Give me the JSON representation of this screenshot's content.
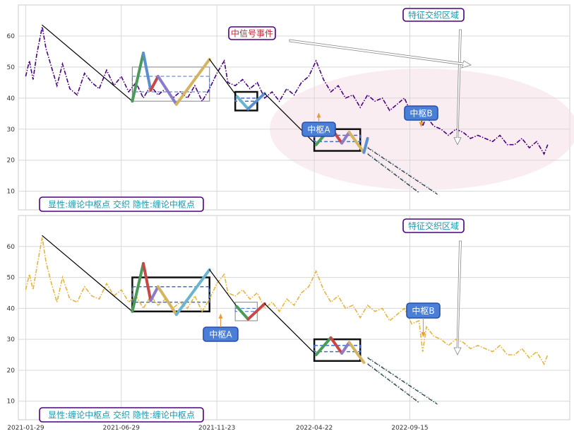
{
  "chart_data": [
    {
      "type": "line",
      "panel": "top",
      "ylim": [
        4,
        70
      ],
      "y_ticks": [
        10,
        20,
        30,
        40,
        50,
        60
      ],
      "x_ticks": [
        "2021-01-29",
        "2021-06-29",
        "2021-11-23",
        "2022-04-22",
        "2022-09-15"
      ],
      "grid": true,
      "price_color": "#4b0082",
      "price_series": [
        [
          0,
          47
        ],
        [
          2,
          52
        ],
        [
          4,
          46
        ],
        [
          6,
          54
        ],
        [
          9,
          63
        ],
        [
          11,
          56
        ],
        [
          14,
          50
        ],
        [
          17,
          44
        ],
        [
          20,
          51
        ],
        [
          24,
          43
        ],
        [
          28,
          41
        ],
        [
          32,
          48
        ],
        [
          36,
          45
        ],
        [
          40,
          43
        ],
        [
          44,
          49
        ],
        [
          48,
          44
        ],
        [
          52,
          47
        ],
        [
          56,
          42
        ],
        [
          60,
          45
        ],
        [
          64,
          40
        ],
        [
          68,
          44
        ],
        [
          72,
          41
        ],
        [
          76,
          43
        ],
        [
          80,
          40
        ],
        [
          84,
          42
        ],
        [
          88,
          40
        ],
        [
          92,
          44
        ],
        [
          96,
          39
        ],
        [
          100,
          43
        ],
        [
          104,
          48
        ],
        [
          108,
          52
        ],
        [
          110,
          45
        ],
        [
          114,
          44
        ],
        [
          118,
          46
        ],
        [
          122,
          43
        ],
        [
          126,
          45
        ],
        [
          130,
          40
        ],
        [
          134,
          42
        ],
        [
          138,
          39
        ],
        [
          142,
          43
        ],
        [
          146,
          41
        ],
        [
          150,
          45
        ],
        [
          154,
          47
        ],
        [
          158,
          52
        ],
        [
          162,
          46
        ],
        [
          166,
          42
        ],
        [
          170,
          44
        ],
        [
          174,
          40
        ],
        [
          178,
          41
        ],
        [
          182,
          37
        ],
        [
          186,
          41
        ],
        [
          190,
          39
        ],
        [
          194,
          40
        ],
        [
          198,
          36
        ],
        [
          202,
          38
        ],
        [
          206,
          40
        ],
        [
          210,
          35
        ],
        [
          214,
          36
        ],
        [
          216,
          31
        ],
        [
          218,
          34
        ],
        [
          222,
          31
        ],
        [
          226,
          30
        ],
        [
          230,
          28
        ],
        [
          234,
          30
        ],
        [
          238,
          29
        ],
        [
          242,
          27
        ],
        [
          246,
          28
        ],
        [
          250,
          27
        ],
        [
          254,
          26
        ],
        [
          258,
          28
        ],
        [
          262,
          25
        ],
        [
          266,
          25
        ],
        [
          270,
          27
        ],
        [
          274,
          24
        ],
        [
          278,
          26
        ],
        [
          282,
          22
        ],
        [
          284,
          25
        ]
      ],
      "strokes": [
        {
          "from": [
            9,
            63.5
          ],
          "to": [
            58,
            39
          ],
          "color": "#000000"
        },
        {
          "from": [
            58,
            39
          ],
          "to": [
            64,
            54.5
          ],
          "color": "#4a9a5a"
        },
        {
          "from": [
            64,
            54.5
          ],
          "to": [
            68,
            42.5
          ],
          "color": "#5a8fd0"
        },
        {
          "from": [
            68,
            42.5
          ],
          "to": [
            72,
            47
          ],
          "color": "#c84848"
        },
        {
          "from": [
            72,
            47
          ],
          "to": [
            82,
            38
          ],
          "color": "#8a7cc8"
        },
        {
          "from": [
            82,
            38
          ],
          "to": [
            100,
            52.5
          ],
          "color": "#d4b45e"
        },
        {
          "from": [
            100,
            52.5
          ],
          "to": [
            115,
            40.5
          ],
          "color": "#000000"
        },
        {
          "from": [
            115,
            40.5
          ],
          "to": [
            121,
            36.5
          ],
          "color": "#6ab4d0"
        },
        {
          "from": [
            121,
            36.5
          ],
          "to": [
            130,
            41.5
          ],
          "color": "#5a8fd0"
        },
        {
          "from": [
            130,
            41.5
          ],
          "to": [
            158,
            25
          ],
          "color": "#000000"
        },
        {
          "from": [
            158,
            25
          ],
          "to": [
            166,
            30.5
          ],
          "color": "#4a9a5a"
        },
        {
          "from": [
            166,
            30.5
          ],
          "to": [
            172,
            25.5
          ],
          "color": "#c84848"
        },
        {
          "from": [
            172,
            25.5
          ],
          "to": [
            176,
            29
          ],
          "color": "#8a7cc8"
        },
        {
          "from": [
            176,
            29
          ],
          "to": [
            184,
            22.5
          ],
          "color": "#d4b45e"
        },
        {
          "from": [
            184,
            22.5
          ],
          "to": [
            186,
            27
          ],
          "color": "#5a8fd0"
        }
      ],
      "zhongshu": [
        {
          "x": [
            58,
            100
          ],
          "y": [
            39,
            50
          ],
          "inner": [
            42,
            47
          ],
          "style": "gray"
        },
        {
          "x": [
            114,
            126
          ],
          "y": [
            36,
            42
          ],
          "inner": [
            39,
            40
          ],
          "style": "black"
        },
        {
          "x": [
            157,
            182
          ],
          "y": [
            23,
            30
          ],
          "inner": [
            26,
            28
          ],
          "style": "black"
        }
      ],
      "projections": [
        {
          "from": [
            186,
            22
          ],
          "to": [
            214,
            9.5
          ]
        },
        {
          "from": [
            186,
            24
          ],
          "to": [
            224,
            9
          ]
        }
      ],
      "labels": {
        "box1": "中枢A",
        "box2": "中枢B",
        "signal": "中信号事件",
        "region": "特征交织区域",
        "legend": "显性:缠论中枢点 交织 隐性:缠论中枢点"
      },
      "label_colors": {
        "box_bg": "#4a7fd8",
        "signal_text": "#c0283a",
        "region_text": "#1a9ab0",
        "legend_text": "#1a9ab0",
        "label_border": "#4b0082"
      }
    },
    {
      "type": "line",
      "panel": "bottom",
      "ylim": [
        4,
        70
      ],
      "y_ticks": [
        10,
        20,
        30,
        40,
        50,
        60
      ],
      "x_ticks": [
        "2021-01-29",
        "2021-06-29",
        "2021-11-23",
        "2022-04-22",
        "2022-09-15"
      ],
      "grid": true,
      "price_color": "#e8b43c",
      "price_series": [
        [
          0,
          46
        ],
        [
          2,
          51
        ],
        [
          4,
          46
        ],
        [
          6,
          53
        ],
        [
          9,
          63
        ],
        [
          11,
          55
        ],
        [
          14,
          48
        ],
        [
          17,
          42
        ],
        [
          20,
          50
        ],
        [
          24,
          43
        ],
        [
          28,
          42
        ],
        [
          32,
          47
        ],
        [
          36,
          44
        ],
        [
          40,
          43
        ],
        [
          44,
          48
        ],
        [
          48,
          44
        ],
        [
          52,
          46
        ],
        [
          56,
          42
        ],
        [
          60,
          44
        ],
        [
          64,
          40
        ],
        [
          68,
          44
        ],
        [
          72,
          41
        ],
        [
          76,
          43
        ],
        [
          80,
          40
        ],
        [
          84,
          42
        ],
        [
          88,
          40
        ],
        [
          92,
          44
        ],
        [
          96,
          39
        ],
        [
          100,
          43
        ],
        [
          104,
          48
        ],
        [
          108,
          51
        ],
        [
          110,
          45
        ],
        [
          114,
          44
        ],
        [
          118,
          46
        ],
        [
          122,
          43
        ],
        [
          126,
          45
        ],
        [
          130,
          40
        ],
        [
          134,
          42
        ],
        [
          138,
          39
        ],
        [
          142,
          43
        ],
        [
          146,
          41
        ],
        [
          150,
          45
        ],
        [
          154,
          47
        ],
        [
          158,
          52
        ],
        [
          162,
          46
        ],
        [
          166,
          42
        ],
        [
          170,
          44
        ],
        [
          174,
          40
        ],
        [
          178,
          41
        ],
        [
          182,
          37
        ],
        [
          186,
          41
        ],
        [
          190,
          39
        ],
        [
          194,
          40
        ],
        [
          198,
          36
        ],
        [
          202,
          38
        ],
        [
          206,
          40
        ],
        [
          210,
          35
        ],
        [
          214,
          36
        ],
        [
          216,
          26
        ],
        [
          218,
          34
        ],
        [
          222,
          31
        ],
        [
          226,
          30
        ],
        [
          230,
          28
        ],
        [
          234,
          30
        ],
        [
          238,
          29
        ],
        [
          242,
          27
        ],
        [
          246,
          28
        ],
        [
          250,
          27
        ],
        [
          254,
          26
        ],
        [
          258,
          28
        ],
        [
          262,
          25
        ],
        [
          266,
          25
        ],
        [
          270,
          27
        ],
        [
          274,
          24
        ],
        [
          278,
          26
        ],
        [
          282,
          22
        ],
        [
          284,
          25
        ]
      ],
      "strokes": [
        {
          "from": [
            9,
            63.5
          ],
          "to": [
            58,
            39
          ],
          "color": "#000000"
        },
        {
          "from": [
            58,
            39
          ],
          "to": [
            64,
            54.5
          ],
          "color": "#4a9a5a"
        },
        {
          "from": [
            64,
            54.5
          ],
          "to": [
            68,
            42.5
          ],
          "color": "#c84848"
        },
        {
          "from": [
            68,
            42.5
          ],
          "to": [
            72,
            47
          ],
          "color": "#8a7cc8"
        },
        {
          "from": [
            72,
            47
          ],
          "to": [
            82,
            38
          ],
          "color": "#d4b45e"
        },
        {
          "from": [
            82,
            38
          ],
          "to": [
            100,
            52.5
          ],
          "color": "#6ab4d0"
        },
        {
          "from": [
            100,
            52.5
          ],
          "to": [
            115,
            40.5
          ],
          "color": "#000000"
        },
        {
          "from": [
            115,
            40.5
          ],
          "to": [
            121,
            36.5
          ],
          "color": "#4a9a5a"
        },
        {
          "from": [
            121,
            36.5
          ],
          "to": [
            130,
            41.5
          ],
          "color": "#c84848"
        },
        {
          "from": [
            130,
            41.5
          ],
          "to": [
            158,
            25
          ],
          "color": "#000000"
        },
        {
          "from": [
            158,
            25
          ],
          "to": [
            166,
            30.5
          ],
          "color": "#4a9a5a"
        },
        {
          "from": [
            166,
            30.5
          ],
          "to": [
            172,
            25.5
          ],
          "color": "#c84848"
        },
        {
          "from": [
            172,
            25.5
          ],
          "to": [
            176,
            29
          ],
          "color": "#8a7cc8"
        },
        {
          "from": [
            176,
            29
          ],
          "to": [
            184,
            22.5
          ],
          "color": "#d4b45e"
        }
      ],
      "zhongshu": [
        {
          "x": [
            58,
            100
          ],
          "y": [
            39,
            50
          ],
          "inner": [
            42,
            47
          ],
          "style": "black"
        },
        {
          "x": [
            114,
            126
          ],
          "y": [
            36,
            42
          ],
          "inner": [
            39,
            40
          ],
          "style": "gray"
        },
        {
          "x": [
            157,
            182
          ],
          "y": [
            23,
            30
          ],
          "inner": [
            26,
            28
          ],
          "style": "black"
        }
      ],
      "projections": [
        {
          "from": [
            186,
            22
          ],
          "to": [
            214,
            9.5
          ]
        },
        {
          "from": [
            186,
            24
          ],
          "to": [
            224,
            9
          ]
        }
      ],
      "labels": {
        "box1": "中枢A",
        "box2": "中枢B",
        "region": "特征交织区域",
        "legend": "显性:缠论中枢点 交织 隐性:缠论中枢点"
      },
      "label_colors": {
        "box_bg": "#4a7fd8",
        "region_text": "#1a9ab0",
        "legend_text": "#1a9ab0",
        "label_border": "#4b0082"
      }
    }
  ]
}
